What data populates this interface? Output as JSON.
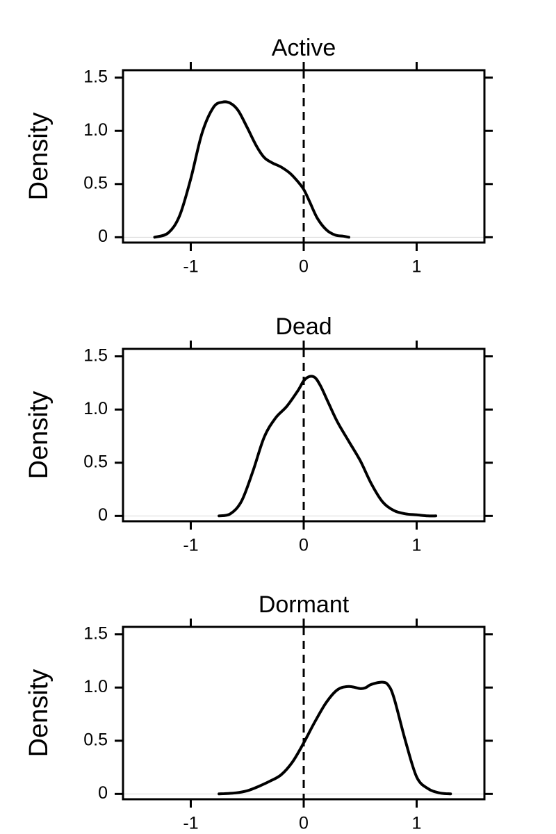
{
  "chart_data": [
    {
      "type": "line",
      "title": "Active",
      "ylabel": "Density",
      "xlabel": "",
      "xlim": [
        -1.6,
        1.6
      ],
      "ylim": [
        -0.05,
        1.57
      ],
      "x_ticks": [
        -1,
        0,
        1
      ],
      "x_tick_labels": [
        "-1",
        "0",
        "1"
      ],
      "y_ticks": [
        0,
        0.5,
        1.0,
        1.5
      ],
      "y_tick_labels": [
        "0",
        "0.5",
        "1.0",
        "1.5"
      ],
      "reference_line_x": 0,
      "grid": false,
      "series": [
        {
          "x": [
            -1.32,
            -1.2,
            -1.1,
            -1.0,
            -0.9,
            -0.8,
            -0.72,
            -0.65,
            -0.58,
            -0.5,
            -0.42,
            -0.35,
            -0.28,
            -0.2,
            -0.12,
            -0.05,
            0.0,
            0.05,
            0.12,
            0.2,
            0.28,
            0.35,
            0.4
          ],
          "y": [
            0.0,
            0.04,
            0.2,
            0.55,
            0.98,
            1.22,
            1.27,
            1.26,
            1.19,
            1.03,
            0.86,
            0.75,
            0.7,
            0.66,
            0.6,
            0.52,
            0.45,
            0.34,
            0.18,
            0.07,
            0.02,
            0.01,
            0.0
          ]
        }
      ]
    },
    {
      "type": "line",
      "title": "Dead",
      "ylabel": "Density",
      "xlabel": "",
      "xlim": [
        -1.6,
        1.6
      ],
      "ylim": [
        -0.05,
        1.57
      ],
      "x_ticks": [
        -1,
        0,
        1
      ],
      "x_tick_labels": [
        "-1",
        "0",
        "1"
      ],
      "y_ticks": [
        0,
        0.5,
        1.0,
        1.5
      ],
      "y_tick_labels": [
        "0",
        "0.5",
        "1.0",
        "1.5"
      ],
      "reference_line_x": 0,
      "grid": false,
      "series": [
        {
          "x": [
            -0.75,
            -0.65,
            -0.55,
            -0.45,
            -0.35,
            -0.25,
            -0.15,
            -0.05,
            0.0,
            0.05,
            0.1,
            0.15,
            0.22,
            0.3,
            0.4,
            0.5,
            0.6,
            0.7,
            0.8,
            0.9,
            1.0,
            1.1,
            1.17
          ],
          "y": [
            0.0,
            0.02,
            0.14,
            0.42,
            0.74,
            0.92,
            1.03,
            1.18,
            1.27,
            1.31,
            1.3,
            1.22,
            1.06,
            0.88,
            0.7,
            0.52,
            0.3,
            0.13,
            0.05,
            0.02,
            0.01,
            0.0,
            0.0
          ]
        }
      ]
    },
    {
      "type": "line",
      "title": "Dormant",
      "ylabel": "Density",
      "xlabel": "",
      "xlim": [
        -1.6,
        1.6
      ],
      "ylim": [
        -0.05,
        1.57
      ],
      "x_ticks": [
        -1,
        0,
        1
      ],
      "x_tick_labels": [
        "-1",
        "0",
        "1"
      ],
      "y_ticks": [
        0,
        0.5,
        1.0,
        1.5
      ],
      "y_tick_labels": [
        "0",
        "0.5",
        "1.0",
        "1.5"
      ],
      "reference_line_x": 0,
      "grid": false,
      "series": [
        {
          "x": [
            -0.75,
            -0.6,
            -0.5,
            -0.4,
            -0.3,
            -0.2,
            -0.1,
            0.0,
            0.1,
            0.2,
            0.3,
            0.4,
            0.5,
            0.55,
            0.6,
            0.7,
            0.75,
            0.8,
            0.9,
            1.0,
            1.1,
            1.2,
            1.3
          ],
          "y": [
            0.0,
            0.01,
            0.03,
            0.07,
            0.12,
            0.18,
            0.3,
            0.48,
            0.68,
            0.86,
            0.98,
            1.01,
            0.99,
            1.0,
            1.03,
            1.05,
            1.02,
            0.9,
            0.5,
            0.16,
            0.05,
            0.01,
            0.0
          ]
        }
      ]
    }
  ]
}
